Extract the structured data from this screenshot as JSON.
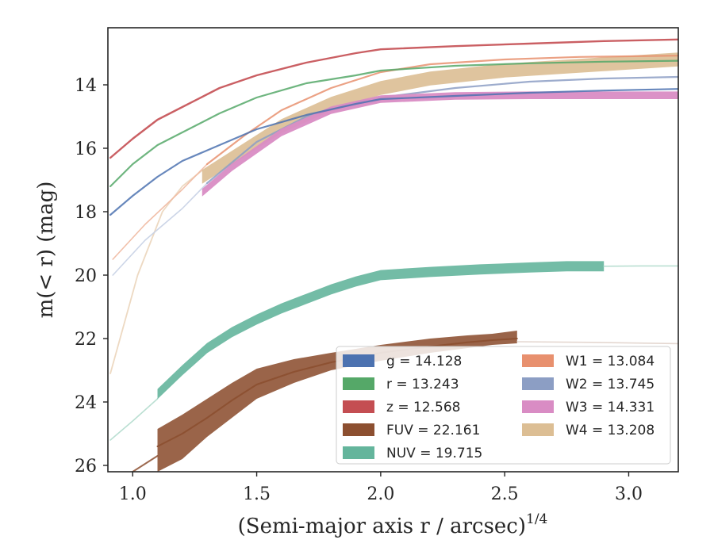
{
  "chart_data": {
    "type": "line",
    "xlabel": "(Semi-major axis r / arcsec)",
    "xlabel_superscript": "1/4",
    "ylabel": "m(< r) (mag)",
    "xlim": [
      0.9,
      3.2
    ],
    "ylim": [
      26.2,
      12.2
    ],
    "y_inverted": true,
    "xticks": [
      "1.0",
      "1.5",
      "2.0",
      "2.5",
      "3.0"
    ],
    "xtick_values": [
      1.0,
      1.5,
      2.0,
      2.5,
      3.0
    ],
    "yticks": [
      "14",
      "16",
      "18",
      "20",
      "22",
      "24",
      "26"
    ],
    "ytick_values": [
      14,
      16,
      18,
      20,
      22,
      24,
      26
    ],
    "grid": false,
    "legend_position": "lower-right",
    "legend": [
      {
        "label": "g = 14.128",
        "color": "#4c72b0"
      },
      {
        "label": "r = 13.243",
        "color": "#55a868"
      },
      {
        "label": "z = 12.568",
        "color": "#c44e52"
      },
      {
        "label": "FUV = 22.161",
        "color": "#8c4f30"
      },
      {
        "label": "NUV = 19.715",
        "color": "#64b59c"
      },
      {
        "label": "W1 = 13.084",
        "color": "#e8906e"
      },
      {
        "label": "W2 = 13.745",
        "color": "#8c9ec4"
      },
      {
        "label": "W3 = 14.331",
        "color": "#d98cc4"
      },
      {
        "label": "W4 = 13.208",
        "color": "#dcbe94"
      }
    ],
    "series": [
      {
        "color": "#e6c9a8",
        "opacity": 0.7,
        "lw": 1.8,
        "x": [
          0.91,
          1.02,
          1.12,
          1.2,
          1.28
        ],
        "y": [
          23.1,
          20.0,
          18.0,
          17.2,
          16.7
        ]
      },
      {
        "color": "#dcbe94",
        "opacity": 0.9,
        "band": 0.22,
        "x": [
          1.28,
          1.4,
          1.6,
          1.8,
          2.0,
          2.2,
          2.5,
          2.8,
          3.0,
          3.2
        ],
        "y": [
          16.9,
          16.3,
          15.3,
          14.6,
          14.1,
          13.8,
          13.55,
          13.4,
          13.3,
          13.2
        ]
      },
      {
        "color": "#c6d0e4",
        "opacity": 0.9,
        "lw": 1.6,
        "x": [
          0.92,
          1.05,
          1.2,
          1.3
        ],
        "y": [
          20.0,
          18.9,
          17.9,
          17.1
        ]
      },
      {
        "color": "#8c9ec4",
        "opacity": 0.85,
        "lw": 2.2,
        "x": [
          1.3,
          1.5,
          1.7,
          1.9,
          2.0,
          2.3,
          2.6,
          2.9,
          3.2
        ],
        "y": [
          17.1,
          15.8,
          15.0,
          14.55,
          14.4,
          14.1,
          13.9,
          13.8,
          13.75
        ]
      },
      {
        "color": "#f0b8a0",
        "opacity": 0.9,
        "lw": 1.6,
        "x": [
          0.92,
          1.05,
          1.2,
          1.3
        ],
        "y": [
          19.5,
          18.4,
          17.3,
          16.5
        ]
      },
      {
        "color": "#e8906e",
        "opacity": 0.85,
        "lw": 2.2,
        "x": [
          1.3,
          1.45,
          1.6,
          1.8,
          2.0,
          2.2,
          2.5,
          2.8,
          3.2
        ],
        "y": [
          16.5,
          15.6,
          14.8,
          14.1,
          13.6,
          13.35,
          13.2,
          13.12,
          13.08
        ]
      },
      {
        "color": "#d98cc4",
        "opacity": 0.95,
        "band": 0.12,
        "x": [
          1.28,
          1.4,
          1.6,
          1.8,
          2.0,
          2.3,
          2.6,
          2.9,
          3.2
        ],
        "y": [
          17.4,
          16.6,
          15.5,
          14.8,
          14.45,
          14.35,
          14.33,
          14.33,
          14.33
        ]
      },
      {
        "color": "#4c72b0",
        "opacity": 0.85,
        "lw": 2.2,
        "x": [
          0.91,
          1.0,
          1.1,
          1.2,
          1.35,
          1.5,
          1.7,
          1.9,
          2.0,
          2.3,
          2.6,
          2.9,
          3.2
        ],
        "y": [
          18.1,
          17.5,
          16.9,
          16.4,
          15.9,
          15.4,
          14.95,
          14.6,
          14.45,
          14.35,
          14.25,
          14.18,
          14.13
        ]
      },
      {
        "color": "#55a868",
        "opacity": 0.85,
        "lw": 2.2,
        "x": [
          0.91,
          1.0,
          1.1,
          1.2,
          1.35,
          1.5,
          1.7,
          1.9,
          2.0,
          2.3,
          2.6,
          2.9,
          3.2
        ],
        "y": [
          17.2,
          16.5,
          15.9,
          15.5,
          14.9,
          14.4,
          13.95,
          13.7,
          13.55,
          13.4,
          13.32,
          13.27,
          13.24
        ]
      },
      {
        "color": "#c44e52",
        "opacity": 0.9,
        "lw": 2.4,
        "x": [
          0.91,
          1.0,
          1.1,
          1.2,
          1.35,
          1.5,
          1.7,
          1.9,
          2.0,
          2.3,
          2.6,
          2.9,
          3.2
        ],
        "y": [
          16.3,
          15.7,
          15.1,
          14.7,
          14.1,
          13.7,
          13.3,
          13.0,
          12.88,
          12.78,
          12.7,
          12.62,
          12.57
        ]
      },
      {
        "color": "#b2dccd",
        "opacity": 0.9,
        "lw": 1.6,
        "x": [
          0.91,
          1.0,
          1.1
        ],
        "y": [
          25.2,
          24.6,
          23.9
        ]
      },
      {
        "color": "#64b59c",
        "opacity": 0.9,
        "band": 0.16,
        "x": [
          1.1,
          1.2,
          1.3,
          1.4,
          1.5,
          1.6,
          1.7,
          1.8,
          1.9,
          2.0,
          2.2,
          2.4,
          2.6,
          2.75,
          2.9
        ],
        "y": [
          23.75,
          23.0,
          22.3,
          21.8,
          21.4,
          21.05,
          20.75,
          20.45,
          20.2,
          20.0,
          19.9,
          19.82,
          19.76,
          19.72,
          19.72
        ]
      },
      {
        "color": "#b2dccd",
        "opacity": 0.9,
        "lw": 1.6,
        "x": [
          2.9,
          3.05,
          3.2
        ],
        "y": [
          19.72,
          19.71,
          19.71
        ]
      },
      {
        "color": "#8c4f30",
        "opacity": 0.85,
        "lw": 2.0,
        "x": [
          1.0,
          1.1
        ],
        "y": [
          26.2,
          25.7
        ]
      },
      {
        "color": "#8c4f30",
        "opacity": 0.88,
        "band_lo": [
          26.2,
          25.8,
          25.1,
          24.5,
          23.9,
          23.4,
          23.0,
          22.7,
          22.45,
          22.3,
          22.2,
          22.15
        ],
        "band_hi": [
          24.85,
          24.4,
          23.9,
          23.4,
          22.95,
          22.65,
          22.45,
          22.2,
          22.0,
          21.9,
          21.85,
          21.75
        ],
        "x": [
          1.1,
          1.2,
          1.3,
          1.4,
          1.5,
          1.65,
          1.8,
          2.0,
          2.2,
          2.35,
          2.45,
          2.55
        ]
      },
      {
        "color": "#8c4f30",
        "opacity": 0.9,
        "lw": 2.0,
        "x": [
          1.1,
          1.2,
          1.3,
          1.4,
          1.5,
          1.65,
          1.8,
          2.0,
          2.2,
          2.35,
          2.45,
          2.55
        ],
        "y": [
          25.4,
          25.0,
          24.5,
          23.95,
          23.45,
          23.05,
          22.75,
          22.45,
          22.25,
          22.12,
          22.05,
          22.0
        ]
      },
      {
        "color": "#d9c6bc",
        "opacity": 0.7,
        "lw": 1.6,
        "x": [
          2.55,
          2.85,
          3.2
        ],
        "y": [
          22.1,
          22.12,
          22.16
        ]
      }
    ]
  }
}
